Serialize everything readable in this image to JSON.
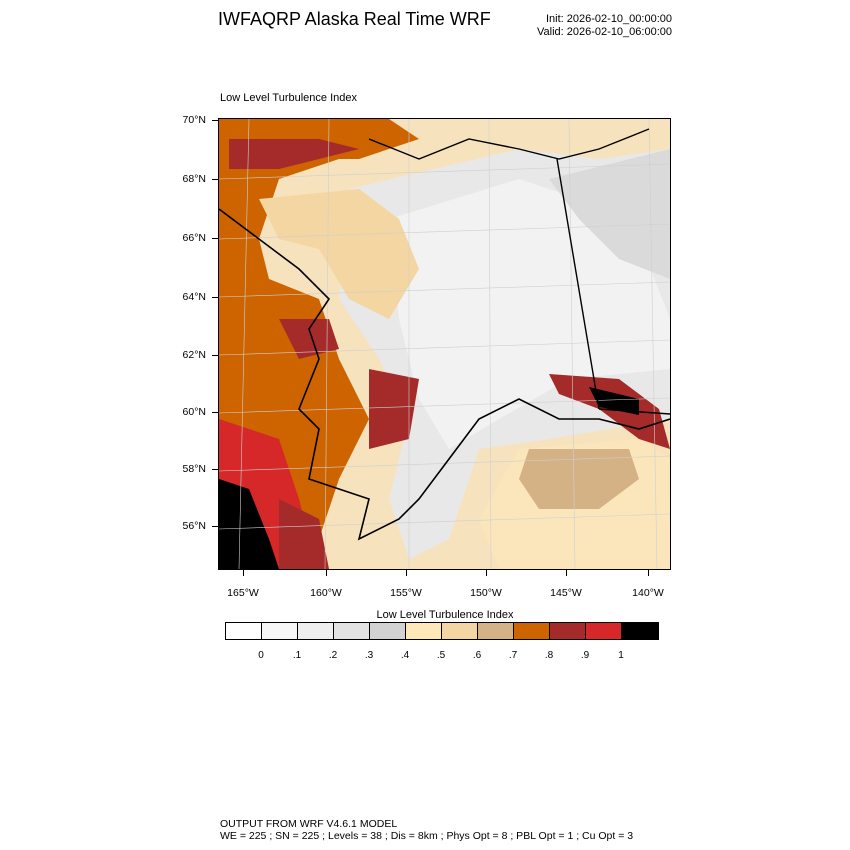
{
  "header": {
    "title": "IWFAQRP Alaska Real Time WRF",
    "init": "Init: 2026-02-10_00:00:00",
    "valid": "Valid: 2026-02-10_06:00:00"
  },
  "map": {
    "title": "Low Level Turbulence Index",
    "lat_labels": [
      "70°N",
      "68°N",
      "66°N",
      "64°N",
      "62°N",
      "60°N",
      "58°N",
      "56°N"
    ],
    "lon_labels": [
      "165°W",
      "160°W",
      "155°W",
      "150°W",
      "145°W",
      "140°W"
    ]
  },
  "colorbar": {
    "title": "Low Level Turbulence Index",
    "colors": [
      "#ffffff",
      "#f7f7f7",
      "#efefef",
      "#e2e2e2",
      "#d2d2d2",
      "#fde8b8",
      "#f3d6a2",
      "#d4b286",
      "#cd6400",
      "#a52a2a",
      "#d62828",
      "#000000"
    ],
    "labels": [
      "0",
      ".1",
      ".2",
      ".3",
      ".4",
      ".5",
      ".6",
      ".7",
      ".8",
      ".9",
      "1"
    ]
  },
  "footer": {
    "line1": "OUTPUT FROM WRF V4.6.1 MODEL",
    "line2": "WE = 225 ; SN = 225 ; Levels = 38 ; Dis = 8km ; Phys Opt = 8 ; PBL Opt = 1 ; Cu Opt = 3"
  }
}
